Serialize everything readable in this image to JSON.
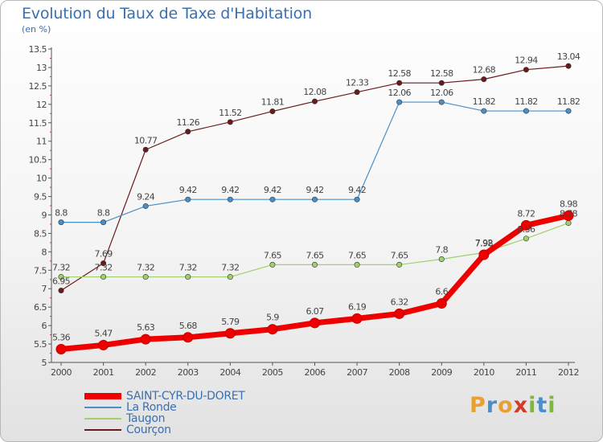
{
  "page": {
    "title": "Evolution du Taux de Taxe d'Habitation",
    "subtitle": "(en %)"
  },
  "logo": {
    "letters": [
      "P",
      "r",
      "o",
      "x",
      "i",
      "t",
      "i"
    ],
    "colors": [
      "#e9a030",
      "#4a90c8",
      "#e9a030",
      "#d23a2a",
      "#7cb83a",
      "#4a90c8",
      "#7cb83a"
    ]
  },
  "chart_data": {
    "type": "line",
    "title": "Evolution du Taux de Taxe d'Habitation",
    "ylabel": "(en %)",
    "xlabel": "",
    "ylim": [
      5,
      13.5
    ],
    "yticks": [
      "5",
      "5.5",
      "6",
      "6.5",
      "7",
      "7.5",
      "8",
      "8.5",
      "9",
      "9.5",
      "10",
      "10.5",
      "11",
      "11.5",
      "12",
      "12.5",
      "13",
      "13.5"
    ],
    "x": [
      "2000",
      "2001",
      "2002",
      "2003",
      "2004",
      "2005",
      "2006",
      "2007",
      "2008",
      "2009",
      "2010",
      "2011",
      "2012"
    ],
    "grid": false,
    "legend_position": "bottom-left",
    "series": [
      {
        "name": "Courçon",
        "color": "#6b1a1a",
        "width": 1.2,
        "labels": true,
        "values": [
          6.95,
          7.69,
          10.77,
          11.26,
          11.52,
          11.81,
          12.08,
          12.33,
          12.58,
          12.58,
          12.68,
          12.94,
          13.04
        ],
        "labels_text": [
          "6.95",
          "7.69",
          "10.77",
          "11.26",
          "11.52",
          "11.81",
          "12.08",
          "12.33",
          "12.58",
          "12.58",
          "12.68",
          "12.94",
          "13.04"
        ]
      },
      {
        "name": "La Ronde",
        "color": "#4a8fc8",
        "width": 1.2,
        "labels": true,
        "values": [
          8.8,
          8.8,
          9.24,
          9.42,
          9.42,
          9.42,
          9.42,
          9.42,
          12.06,
          12.06,
          11.82,
          11.82,
          11.82
        ],
        "labels_text": [
          "8.8",
          "8.8",
          "9.24",
          "9.42",
          "9.42",
          "9.42",
          "9.42",
          "9.42",
          "12.06",
          "12.06",
          "11.82",
          "11.82",
          "11.82"
        ]
      },
      {
        "name": "Taugon",
        "color": "#9fd06a",
        "width": 1.2,
        "labels": true,
        "values": [
          7.32,
          7.32,
          7.32,
          7.32,
          7.32,
          7.65,
          7.65,
          7.65,
          7.65,
          7.8,
          7.98,
          8.36,
          8.78
        ],
        "labels_text": [
          "7.32",
          "7.32",
          "7.32",
          "7.32",
          "7.32",
          "7.65",
          "7.65",
          "7.65",
          "7.65",
          "7.8",
          "7.98",
          "8.36",
          "8.78"
        ]
      },
      {
        "name": "SAINT-CYR-DU-DORET",
        "color": "#ee0000",
        "width": 7,
        "labels": true,
        "values": [
          5.36,
          5.47,
          5.63,
          5.68,
          5.79,
          5.9,
          6.07,
          6.19,
          6.32,
          6.6,
          7.92,
          8.72,
          8.98
        ],
        "labels_text": [
          "5.36",
          "5.47",
          "5.63",
          "5.68",
          "5.79",
          "5.9",
          "6.07",
          "6.19",
          "6.32",
          "6.6",
          "7.92",
          "8.72",
          "8.98"
        ]
      }
    ],
    "legend_order": [
      "SAINT-CYR-DU-DORET",
      "La Ronde",
      "Taugon",
      "Courçon"
    ]
  }
}
